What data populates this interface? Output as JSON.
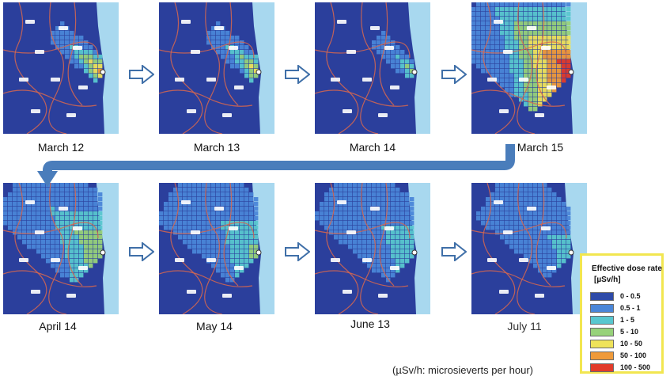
{
  "panels": [
    {
      "caption": "March 12"
    },
    {
      "caption": "March 13"
    },
    {
      "caption": "March 14"
    },
    {
      "caption": "March 15"
    },
    {
      "caption": "April 14"
    },
    {
      "caption": "May 14"
    },
    {
      "caption": "June 13"
    },
    {
      "caption": "July 11"
    }
  ],
  "legend": {
    "title": "Effective dose rate",
    "unit": "[µSv/h]",
    "items": [
      {
        "label": "0 - 0.5",
        "color": "#2e4aa8"
      },
      {
        "label": "0.5 - 1",
        "color": "#4a86d8"
      },
      {
        "label": "1 - 5",
        "color": "#58c7cf"
      },
      {
        "label": "5 - 10",
        "color": "#97d27a"
      },
      {
        "label": "10 - 50",
        "color": "#efe35a"
      },
      {
        "label": "50 - 100",
        "color": "#ef9a3a"
      },
      {
        "label": "100 - 500",
        "color": "#e23a2a"
      }
    ]
  },
  "footnote": "(µSv/h: microsieverts per hour)",
  "colors": {
    "land_base": "#2b3f9c",
    "sea": "#a8d8ef",
    "border_line": "#d9674e",
    "flow_arrow": "#4a7dbb",
    "step_arrow": "#3f6fa8"
  }
}
